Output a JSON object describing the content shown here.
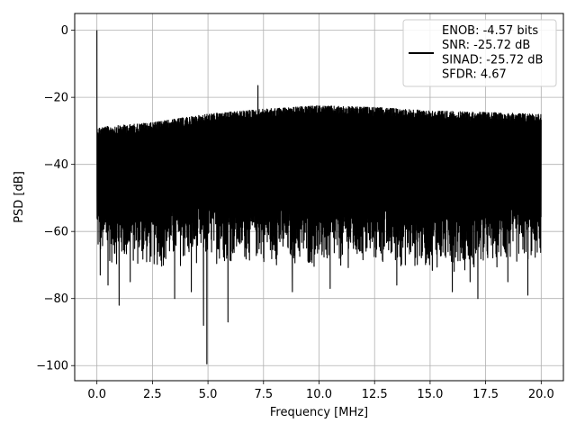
{
  "chart_data": {
    "type": "line",
    "title": "",
    "xlabel": "Frequency [MHz]",
    "ylabel": "PSD [dB]",
    "xlim": [
      -1.0,
      21.0
    ],
    "ylim": [
      -104.5,
      5.0
    ],
    "xticks": [
      0.0,
      2.5,
      5.0,
      7.5,
      10.0,
      12.5,
      15.0,
      17.5,
      20.0
    ],
    "xtick_labels": [
      "0.0",
      "2.5",
      "5.0",
      "7.5",
      "10.0",
      "12.5",
      "15.0",
      "17.5",
      "20.0"
    ],
    "yticks": [
      0,
      -20,
      -40,
      -60,
      -80,
      -100
    ],
    "ytick_labels": [
      "0",
      "−20",
      "−40",
      "−60",
      "−80",
      "−100"
    ],
    "grid": true,
    "legend_position": "top-right",
    "series": [
      {
        "name": "ENOB: -4.57 bits\nSNR: -25.72 dB\nSINAD: -25.72 dB\nSFDR: 4.67",
        "color": "#000000",
        "frequency_range_mhz": [
          0.0,
          20.0
        ],
        "dc_peak_db": 0.0,
        "upper_envelope_db": [
          [
            0.0,
            -27
          ],
          [
            2.5,
            -25.5
          ],
          [
            5.0,
            -23
          ],
          [
            7.5,
            -21.5
          ],
          [
            10.0,
            -20.5
          ],
          [
            12.5,
            -21
          ],
          [
            15.0,
            -22
          ],
          [
            17.5,
            -22.5
          ],
          [
            20.0,
            -23
          ]
        ],
        "lower_envelope_db": [
          [
            0.0,
            -70
          ],
          [
            2.5,
            -72
          ],
          [
            5.0,
            -70
          ],
          [
            7.5,
            -70
          ],
          [
            10.0,
            -72
          ],
          [
            12.5,
            -71
          ],
          [
            15.0,
            -72
          ],
          [
            17.5,
            -72
          ],
          [
            20.0,
            -70
          ]
        ],
        "peaks_db": [
          [
            7.25,
            -16.5
          ]
        ],
        "dips_db": [
          [
            0.15,
            -73
          ],
          [
            0.5,
            -76
          ],
          [
            1.0,
            -82
          ],
          [
            1.5,
            -75
          ],
          [
            3.5,
            -80
          ],
          [
            4.25,
            -78
          ],
          [
            4.8,
            -88
          ],
          [
            4.95,
            -99.5
          ],
          [
            5.9,
            -87
          ],
          [
            8.8,
            -78
          ],
          [
            10.5,
            -77
          ],
          [
            13.5,
            -76
          ],
          [
            16.0,
            -78
          ],
          [
            16.8,
            -75
          ],
          [
            17.15,
            -80
          ],
          [
            18.5,
            -75
          ],
          [
            19.4,
            -79
          ]
        ]
      }
    ]
  }
}
